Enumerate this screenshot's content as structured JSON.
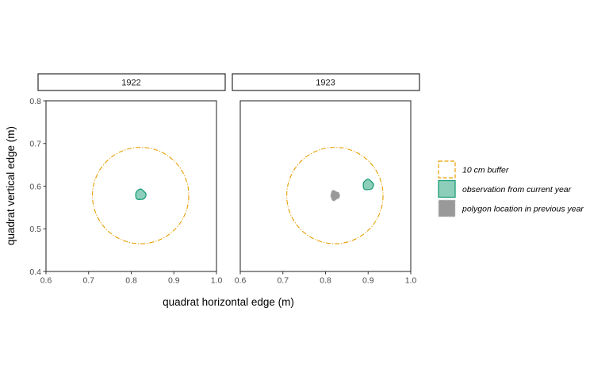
{
  "chart_data": {
    "type": "map",
    "facets": [
      "1922",
      "1923"
    ],
    "xlabel": "quadrat horizontal edge (m)",
    "ylabel": "quadrat vertical edge (m)",
    "xlim": [
      0.6,
      1.0
    ],
    "ylim": [
      0.4,
      0.8
    ],
    "xticks": [
      "0.6",
      "0.7",
      "0.8",
      "0.9",
      "1.0"
    ],
    "yticks": [
      "0.4",
      "0.5",
      "0.6",
      "0.7",
      "0.8"
    ],
    "grid": false,
    "legend_position": "right",
    "legend": [
      {
        "key": "buffer",
        "label": "10 cm buffer",
        "color": "#E69F00"
      },
      {
        "key": "current",
        "label": "observation from current year",
        "color": "#1B9E77"
      },
      {
        "key": "previous",
        "label": "polygon location in previous year",
        "color": "#999999"
      }
    ],
    "panels": [
      {
        "facet": "1922",
        "buffer": {
          "cx": 0.822,
          "cy": 0.578,
          "r": 0.113
        },
        "current": [
          {
            "x": 0.822,
            "y": 0.58
          }
        ],
        "previous": []
      },
      {
        "facet": "1923",
        "buffer": {
          "cx": 0.822,
          "cy": 0.578,
          "r": 0.113
        },
        "current": [
          {
            "x": 0.9,
            "y": 0.603
          }
        ],
        "previous": [
          {
            "x": 0.822,
            "y": 0.578
          }
        ]
      }
    ]
  }
}
